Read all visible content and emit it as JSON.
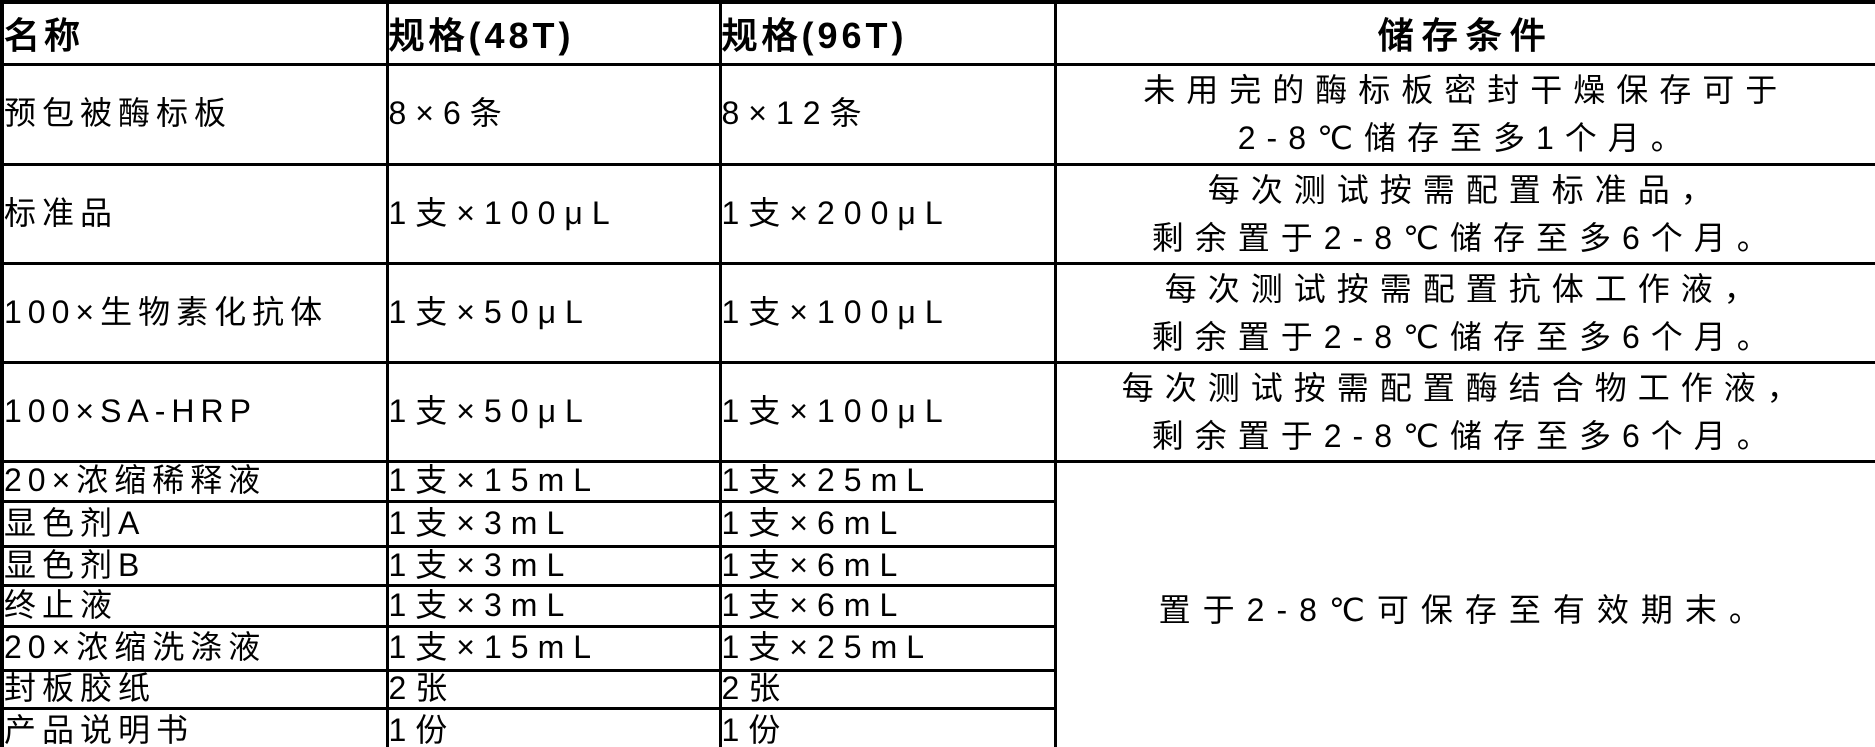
{
  "page": {
    "background_color": "#ffffff",
    "text_color": "#000000",
    "border_color": "#000000"
  },
  "table": {
    "headers": {
      "name": "名称",
      "spec48": "规格(48T)",
      "spec96": "规格(96T)",
      "storage": "储存条件"
    },
    "rows": [
      {
        "name": "预包被酶标板",
        "spec48": "8×6条",
        "spec96": "8×12条",
        "storage_lines": [
          "未用完的酶标板密封干燥保存可于",
          "2-8℃储存至多1个月。"
        ]
      },
      {
        "name": "标准品",
        "spec48": "1支×100μL",
        "spec96": "1支×200μL",
        "storage_lines": [
          "每次测试按需配置标准品，",
          "剩余置于2-8℃储存至多6个月。"
        ]
      },
      {
        "name": "100×生物素化抗体",
        "spec48": "1支×50μL",
        "spec96": "1支×100μL",
        "storage_lines": [
          "每次测试按需配置抗体工作液，",
          "剩余置于2-8℃储存至多6个月。"
        ]
      },
      {
        "name": "100×SA-HRP",
        "spec48": "1支×50μL",
        "spec96": "1支×100μL",
        "storage_lines": [
          "每次测试按需配置酶结合物工作液，",
          "剩余置于2-8℃储存至多6个月。"
        ]
      },
      {
        "name": "20×浓缩稀释液",
        "spec48": "1支×15mL",
        "spec96": "1支×25mL"
      },
      {
        "name": "显色剂A",
        "spec48": "1支×3mL",
        "spec96": "1支×6mL"
      },
      {
        "name": "显色剂B",
        "spec48": "1支×3mL",
        "spec96": "1支×6mL"
      },
      {
        "name": "终止液",
        "spec48": "1支×3mL",
        "spec96": "1支×6mL"
      },
      {
        "name": "20×浓缩洗涤液",
        "spec48": "1支×15mL",
        "spec96": "1支×25mL"
      },
      {
        "name": "封板胶纸",
        "spec48": "2张",
        "spec96": "2张"
      },
      {
        "name": "产品说明书",
        "spec48": "1份",
        "spec96": "1份"
      }
    ],
    "merged_storage": "置于2-8℃可保存至有效期末。"
  }
}
